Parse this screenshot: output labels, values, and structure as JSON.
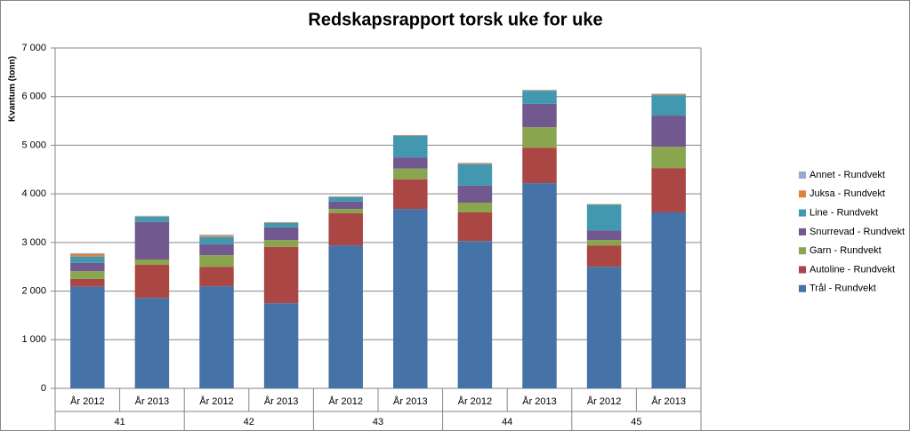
{
  "chart_data": {
    "type": "stacked-bar",
    "title": "Redskapsrapport torsk uke for uke",
    "y_label": "Kvantum (tonn)",
    "categories": [
      "År 2012",
      "År 2013",
      "År 2012",
      "År 2013",
      "År 2012",
      "År 2013",
      "År 2012",
      "År 2013",
      "År 2012",
      "År 2013"
    ],
    "groups": [
      "41",
      "42",
      "43",
      "44",
      "45"
    ],
    "ylim": [
      0,
      7000
    ],
    "yticks": [
      0,
      {
        "value": 1000,
        "label": "1 000"
      },
      {
        "value": 2000,
        "label": "2 000"
      },
      {
        "value": 3000,
        "label": "3 000"
      },
      {
        "value": 4000,
        "label": "4 000"
      },
      {
        "value": 5000,
        "label": "5 000"
      },
      {
        "value": 6000,
        "label": "6 000"
      },
      {
        "value": 7000,
        "label": "7 000"
      }
    ],
    "grid": true,
    "legend": "right",
    "series": [
      {
        "name": "Trål - Rundvekt",
        "color": "#4572a7",
        "values": [
          2090,
          1860,
          2100,
          1750,
          2940,
          3690,
          3030,
          4220,
          2500,
          3620
        ]
      },
      {
        "name": "Autoline - Rundvekt",
        "color": "#aa4643",
        "values": [
          160,
          680,
          400,
          1160,
          660,
          610,
          590,
          730,
          440,
          910
        ]
      },
      {
        "name": "Garn - Rundvekt",
        "color": "#89a54e",
        "values": [
          160,
          110,
          240,
          140,
          90,
          220,
          200,
          420,
          110,
          440
        ]
      },
      {
        "name": "Snurrevad - Rundvekt",
        "color": "#71588f",
        "values": [
          170,
          770,
          220,
          260,
          150,
          230,
          350,
          480,
          200,
          640
        ]
      },
      {
        "name": "Line - Rundvekt",
        "color": "#4198af",
        "values": [
          130,
          110,
          150,
          90,
          90,
          440,
          440,
          270,
          530,
          420
        ]
      },
      {
        "name": "Juksa - Rundvekt",
        "color": "#db843d",
        "values": [
          50,
          10,
          30,
          10,
          10,
          10,
          20,
          10,
          10,
          20
        ]
      },
      {
        "name": "Annet - Rundvekt",
        "color": "#93a9cf",
        "values": [
          20,
          10,
          20,
          10,
          10,
          10,
          10,
          10,
          0,
          10
        ]
      }
    ]
  }
}
